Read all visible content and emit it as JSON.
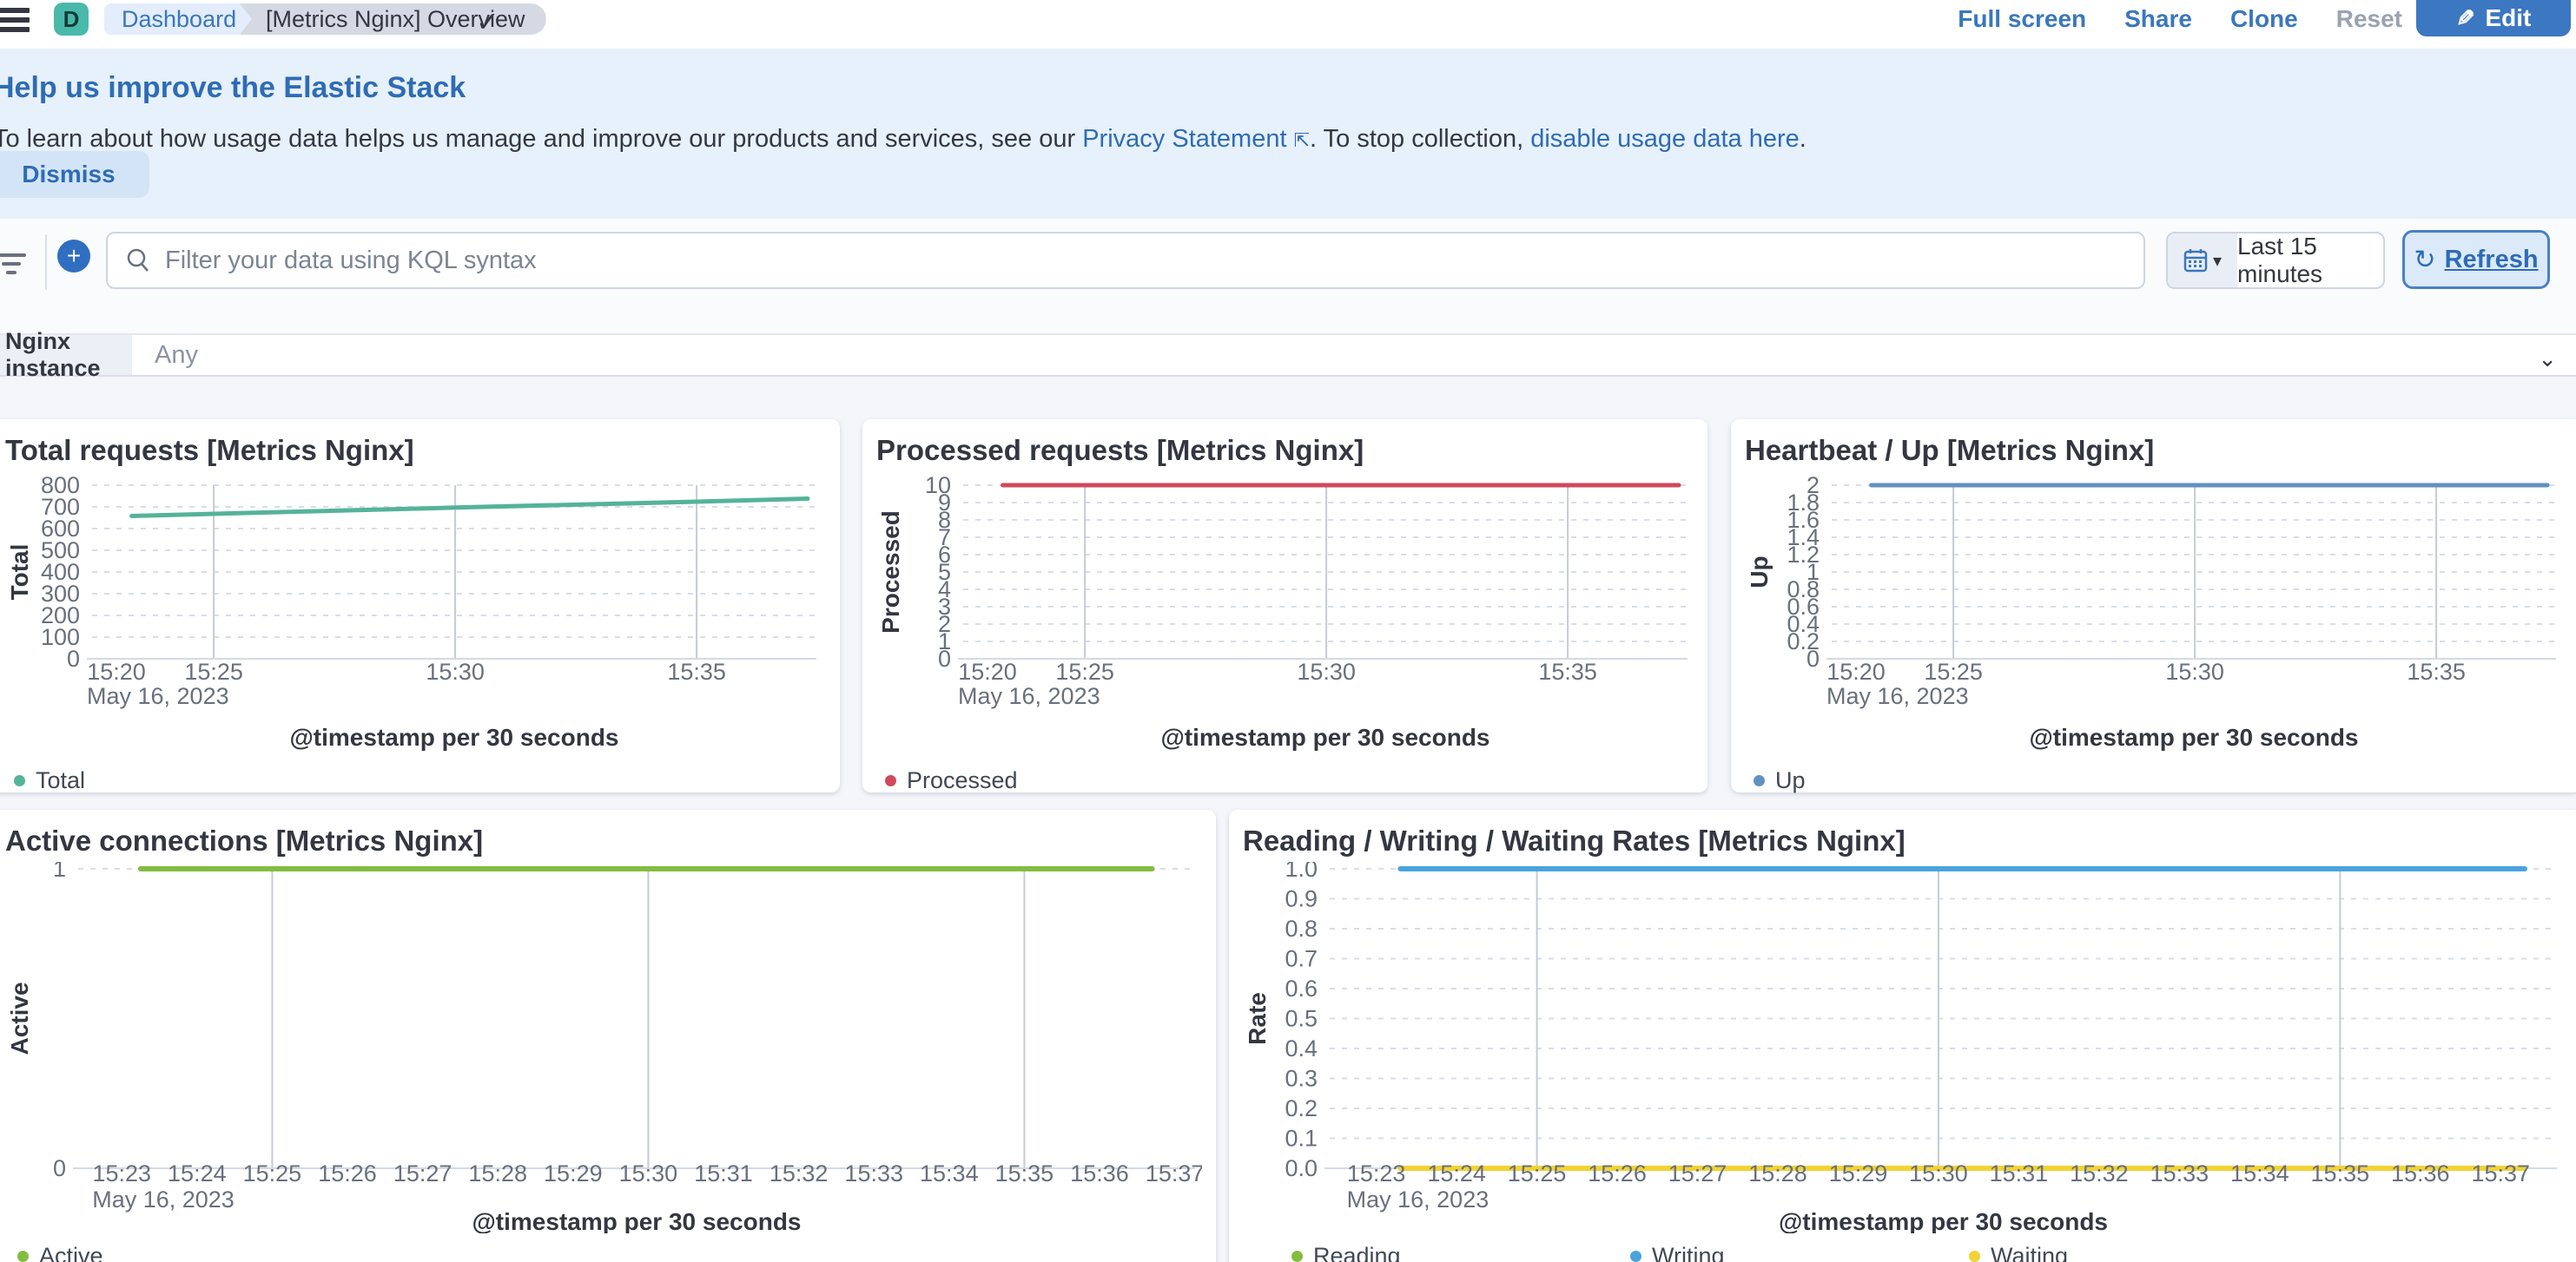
{
  "header": {
    "space_badge": "D",
    "breadcrumb_dashboard": "Dashboard",
    "breadcrumb_current": "[Metrics Nginx] Overview",
    "actions": {
      "fullscreen": "Full screen",
      "share": "Share",
      "clone": "Clone",
      "reset": "Reset"
    },
    "edit_button": "Edit"
  },
  "banner": {
    "title": "Help us improve the Elastic Stack",
    "body_prefix": "To learn about how usage data helps us manage and improve our products and services, see our ",
    "link_privacy": "Privacy Statement",
    "body_middle": ". To stop collection, ",
    "link_disable": "disable usage data here",
    "body_suffix": ".",
    "dismiss_button": "Dismiss"
  },
  "filter_bar": {
    "search_placeholder": "Filter your data using KQL syntax",
    "time_range": "Last 15 minutes",
    "refresh_button": "Refresh"
  },
  "controls": {
    "label": "Nginx instance",
    "value": "Any"
  },
  "colors": {
    "accent": "#3a77bd",
    "total": "#54b399",
    "processed": "#d0495c",
    "up": "#6092c0",
    "active": "#84bc40",
    "reading": "#84bc40",
    "writing": "#4aa3dd",
    "waiting": "#f1d335"
  },
  "chart_data": {
    "type": "line",
    "date": "May 16, 2023",
    "charts": [
      {
        "id": "total-requests",
        "title": "Total requests [Metrics Nginx]",
        "y_label": "Total",
        "x_label": "@timestamp per 30 seconds",
        "y_min": 0,
        "y_max": 800,
        "y_ticks": [
          "0",
          "100",
          "200",
          "300",
          "400",
          "500",
          "600",
          "700",
          "800"
        ],
        "x_domain": [
          22.48,
          37.48
        ],
        "x_gridlines": [
          25,
          30,
          35
        ],
        "x_ticks": [
          {
            "m": 20,
            "label": "15:20",
            "sub": "May 16, 2023",
            "clamp": true
          },
          {
            "m": 25,
            "label": "15:25"
          },
          {
            "m": 30,
            "label": "15:30"
          },
          {
            "m": 35,
            "label": "15:35"
          }
        ],
        "series": [
          {
            "name": "Total",
            "color": "#54b399",
            "points": [
              [
                23.3,
                658
              ],
              [
                25,
                668
              ],
              [
                30,
                697
              ],
              [
                35,
                724
              ],
              [
                37.3,
                738
              ]
            ]
          }
        ],
        "legend": [
          {
            "label": "Total",
            "color": "#54b399"
          }
        ]
      },
      {
        "id": "processed-requests",
        "title": "Processed requests [Metrics Nginx]",
        "y_label": "Processed",
        "x_label": "@timestamp per 30 seconds",
        "y_min": 0,
        "y_max": 10,
        "y_ticks": [
          "0",
          "1",
          "2",
          "3",
          "4",
          "5",
          "6",
          "7",
          "8",
          "9",
          "10"
        ],
        "x_domain": [
          22.48,
          37.48
        ],
        "x_gridlines": [
          25,
          30,
          35
        ],
        "x_ticks": [
          {
            "m": 20,
            "label": "15:20",
            "sub": "May 16, 2023",
            "clamp": true
          },
          {
            "m": 25,
            "label": "15:25"
          },
          {
            "m": 30,
            "label": "15:30"
          },
          {
            "m": 35,
            "label": "15:35"
          }
        ],
        "series": [
          {
            "name": "Processed",
            "color": "#d0495c",
            "points": [
              [
                23.3,
                10
              ],
              [
                37.3,
                10
              ]
            ]
          }
        ],
        "legend": [
          {
            "label": "Processed",
            "color": "#d0495c"
          }
        ]
      },
      {
        "id": "heartbeat-up",
        "title": "Heartbeat / Up [Metrics Nginx]",
        "y_label": "Up",
        "x_label": "@timestamp per 30 seconds",
        "y_min": 0,
        "y_max": 2,
        "y_ticks": [
          "0",
          "0.2",
          "0.4",
          "0.6",
          "0.8",
          "1",
          "1.2",
          "1.4",
          "1.6",
          "1.8",
          "2"
        ],
        "x_domain": [
          22.48,
          37.48
        ],
        "x_gridlines": [
          25,
          30,
          35
        ],
        "x_ticks": [
          {
            "m": 20,
            "label": "15:20",
            "sub": "May 16, 2023",
            "clamp": true
          },
          {
            "m": 25,
            "label": "15:25"
          },
          {
            "m": 30,
            "label": "15:30"
          },
          {
            "m": 35,
            "label": "15:35"
          }
        ],
        "series": [
          {
            "name": "Up",
            "color": "#6092c0",
            "points": [
              [
                23.3,
                2
              ],
              [
                37.3,
                2
              ]
            ]
          }
        ],
        "legend": [
          {
            "label": "Up",
            "color": "#6092c0"
          }
        ]
      },
      {
        "id": "active-connections",
        "title": "Active connections [Metrics Nginx]",
        "y_label": "Active",
        "x_label": "@timestamp per 30 seconds",
        "y_min": 0,
        "y_max": 1,
        "y_ticks": [
          "0",
          "1"
        ],
        "x_domain": [
          22.42,
          37.27
        ],
        "x_gridlines": [
          25,
          30,
          35
        ],
        "x_ticks": [
          {
            "m": 23,
            "label": "15:23",
            "sub": "May 16, 2023"
          },
          {
            "m": 24,
            "label": "15:24"
          },
          {
            "m": 25,
            "label": "15:25"
          },
          {
            "m": 26,
            "label": "15:26"
          },
          {
            "m": 27,
            "label": "15:27"
          },
          {
            "m": 28,
            "label": "15:28"
          },
          {
            "m": 29,
            "label": "15:29"
          },
          {
            "m": 30,
            "label": "15:30"
          },
          {
            "m": 31,
            "label": "15:31"
          },
          {
            "m": 32,
            "label": "15:32"
          },
          {
            "m": 33,
            "label": "15:33"
          },
          {
            "m": 34,
            "label": "15:34"
          },
          {
            "m": 35,
            "label": "15:35"
          },
          {
            "m": 36,
            "label": "15:36"
          },
          {
            "m": 37,
            "label": "15:37"
          }
        ],
        "series": [
          {
            "name": "Active",
            "color": "#84bc40",
            "points": [
              [
                23.25,
                1
              ],
              [
                36.7,
                1
              ]
            ]
          }
        ],
        "legend": [
          {
            "label": "Active",
            "color": "#84bc40"
          }
        ]
      },
      {
        "id": "rates",
        "title": "Reading / Writing / Waiting Rates [Metrics Nginx]",
        "y_label": "Rate",
        "x_label": "@timestamp per 30 seconds",
        "y_min": 0,
        "y_max": 1,
        "y_ticks": [
          "0.0",
          "0.1",
          "0.2",
          "0.3",
          "0.4",
          "0.5",
          "0.6",
          "0.7",
          "0.8",
          "0.9",
          "1.0"
        ],
        "x_domain": [
          22.42,
          37.7
        ],
        "x_gridlines": [
          25,
          30,
          35
        ],
        "x_ticks": [
          {
            "m": 23,
            "label": "15:23",
            "sub": "May 16, 2023"
          },
          {
            "m": 24,
            "label": "15:24"
          },
          {
            "m": 25,
            "label": "15:25"
          },
          {
            "m": 26,
            "label": "15:26"
          },
          {
            "m": 27,
            "label": "15:27"
          },
          {
            "m": 28,
            "label": "15:28"
          },
          {
            "m": 29,
            "label": "15:29"
          },
          {
            "m": 30,
            "label": "15:30"
          },
          {
            "m": 31,
            "label": "15:31"
          },
          {
            "m": 32,
            "label": "15:32"
          },
          {
            "m": 33,
            "label": "15:33"
          },
          {
            "m": 34,
            "label": "15:34"
          },
          {
            "m": 35,
            "label": "15:35"
          },
          {
            "m": 36,
            "label": "15:36"
          },
          {
            "m": 37,
            "label": "15:37"
          }
        ],
        "series": [
          {
            "name": "Reading",
            "color": "#84bc40",
            "points": [
              [
                23.3,
                0
              ],
              [
                37.3,
                0
              ]
            ]
          },
          {
            "name": "Writing",
            "color": "#4aa3dd",
            "points": [
              [
                23.3,
                1
              ],
              [
                37.3,
                1
              ]
            ]
          },
          {
            "name": "Waiting",
            "color": "#f1d335",
            "points": [
              [
                23.3,
                0
              ],
              [
                37.3,
                0
              ]
            ]
          }
        ],
        "legend": [
          {
            "label": "Reading",
            "color": "#84bc40"
          },
          {
            "label": "Writing",
            "color": "#4aa3dd"
          },
          {
            "label": "Waiting",
            "color": "#f1d335"
          }
        ]
      }
    ]
  }
}
